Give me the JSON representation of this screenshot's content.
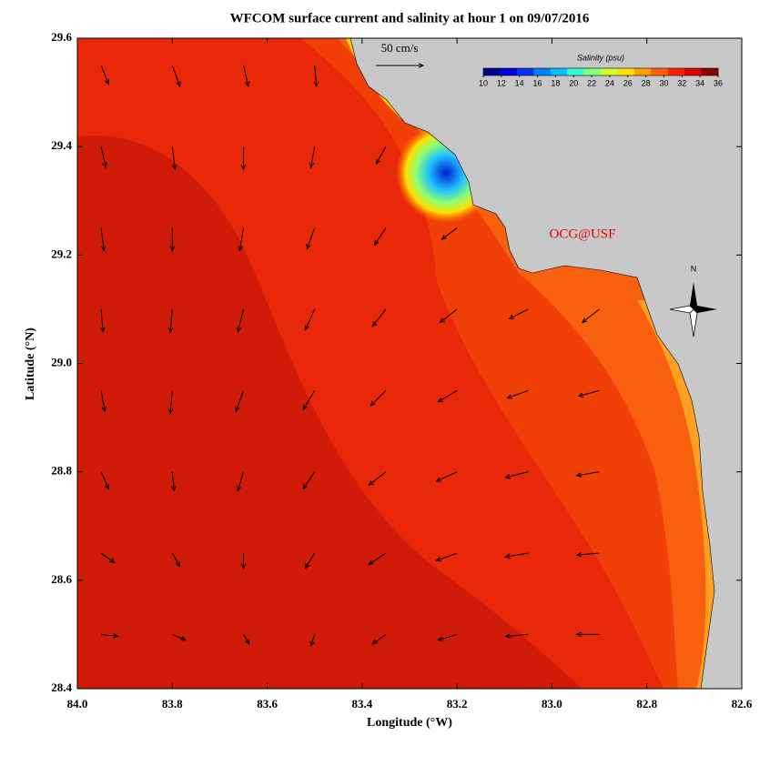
{
  "chart_data": {
    "type": "vector_map",
    "title": "WFCOM surface current and salinity at hour 1 on 09/07/2016",
    "xlabel": "Longitude (°W)",
    "ylabel": "Latitude (°N)",
    "xlim": [
      84.0,
      82.6
    ],
    "ylim": [
      28.4,
      29.6
    ],
    "xticks": [
      {
        "value": 84.0,
        "label": "84.0"
      },
      83.8,
      83.6,
      83.4,
      83.2,
      {
        "value": 83.0,
        "label": "83.0"
      },
      82.8,
      82.6
    ],
    "yticks": [
      28.4,
      28.6,
      28.8,
      {
        "value": 29.0,
        "label": "29.0"
      },
      29.2,
      29.4,
      29.6
    ],
    "scale_arrow": {
      "label": "50 cm/s",
      "value": 50
    },
    "annotation": "OCG@USF",
    "north_label": "N",
    "colorbar": {
      "title": "Salinity (psu)",
      "lim": [
        10,
        36
      ],
      "ticks": [
        10,
        12,
        14,
        16,
        18,
        20,
        22,
        24,
        26,
        28,
        30,
        32,
        34,
        36
      ],
      "colors": [
        "#00008f",
        "#0000df",
        "#0030ff",
        "#0080ff",
        "#00c0ff",
        "#30ffcf",
        "#80ff80",
        "#cfff30",
        "#ffdf00",
        "#ff9f00",
        "#ff6000",
        "#ff2000",
        "#df0000",
        "#8f0000"
      ]
    },
    "vectors": {
      "lon": [
        83.95,
        83.8,
        83.65,
        83.5,
        83.35,
        83.2,
        83.05,
        82.9
      ],
      "lat": [
        29.55,
        29.4,
        29.25,
        29.1,
        28.95,
        28.8,
        28.65,
        28.5
      ],
      "u": [
        [
          8,
          8,
          5,
          2,
          null,
          null,
          null,
          null
        ],
        [
          5,
          3,
          0,
          -4,
          -10,
          null,
          null,
          null
        ],
        [
          3,
          0,
          -4,
          -8,
          -12,
          -16,
          null,
          null
        ],
        [
          2,
          -2,
          -6,
          -10,
          -14,
          -18,
          -20,
          -18
        ],
        [
          4,
          -2,
          -8,
          -12,
          -16,
          -20,
          -22,
          -22
        ],
        [
          8,
          2,
          -6,
          -12,
          -18,
          -22,
          -24,
          -24
        ],
        [
          14,
          8,
          0,
          -10,
          -18,
          -22,
          -24,
          -24
        ],
        [
          18,
          14,
          6,
          -4,
          -14,
          -20,
          -24,
          -24
        ]
      ],
      "v": [
        [
          -20,
          -22,
          -22,
          -22,
          null,
          null,
          null,
          null
        ],
        [
          -22,
          -24,
          -24,
          -22,
          -18,
          null,
          null,
          null
        ],
        [
          -24,
          -24,
          -24,
          -22,
          -18,
          -12,
          null,
          null
        ],
        [
          -24,
          -24,
          -24,
          -22,
          -18,
          -14,
          -10,
          -14
        ],
        [
          -22,
          -24,
          -22,
          -20,
          -16,
          -12,
          -8,
          -6
        ],
        [
          -18,
          -20,
          -20,
          -18,
          -14,
          -10,
          -6,
          -4
        ],
        [
          -10,
          -14,
          -16,
          -16,
          -12,
          -8,
          -4,
          -2
        ],
        [
          -2,
          -6,
          -10,
          -12,
          -10,
          -6,
          -2,
          0
        ]
      ]
    }
  }
}
